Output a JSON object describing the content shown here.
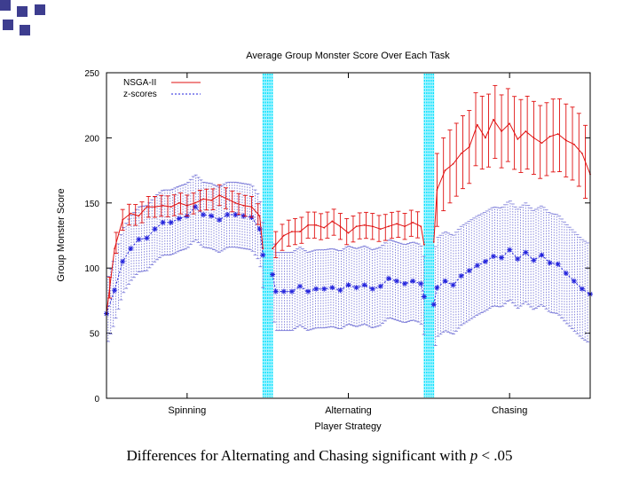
{
  "caption": {
    "prefix": "Differences for Alternating and Chasing significant with ",
    "var": "p",
    "suffix": " < .05"
  },
  "colors": {
    "nsga": "#e01010",
    "zscore": "#2222dd",
    "zscore_err": "#7a7ad8",
    "separator": "#00e0ff",
    "frame": "#000000",
    "deco": "#3d3d8f"
  },
  "chart_data": {
    "type": "line",
    "title": "Average Group Monster Score Over Each Task",
    "xlabel": "Player Strategy",
    "ylabel": "Group Monster Score",
    "ylim": [
      0,
      250
    ],
    "yticks": [
      0,
      50,
      100,
      150,
      200,
      250
    ],
    "xlim": [
      0,
      300
    ],
    "categories": [
      {
        "label": "Spinning",
        "center": 50
      },
      {
        "label": "Alternating",
        "center": 150
      },
      {
        "label": "Chasing",
        "center": 250
      }
    ],
    "separators": [
      100,
      200
    ],
    "legend": {
      "position": "top-left",
      "entries": [
        "NSGA-II",
        "z-scores"
      ]
    },
    "series": [
      {
        "name": "NSGA-II",
        "style": "solid",
        "segments": [
          {
            "x_start": 0,
            "x_end": 97,
            "points": [
              [
                0,
                65
              ],
              [
                5,
                115
              ],
              [
                10,
                137
              ],
              [
                15,
                142
              ],
              [
                20,
                140
              ],
              [
                25,
                147
              ],
              [
                30,
                147
              ],
              [
                35,
                148
              ],
              [
                40,
                147
              ],
              [
                45,
                150
              ],
              [
                50,
                148
              ],
              [
                55,
                150
              ],
              [
                60,
                153
              ],
              [
                65,
                152
              ],
              [
                70,
                156
              ],
              [
                75,
                153
              ],
              [
                80,
                150
              ],
              [
                85,
                148
              ],
              [
                90,
                147
              ],
              [
                95,
                140
              ],
              [
                97,
                115
              ]
            ],
            "err": 8
          },
          {
            "x_start": 103,
            "x_end": 197,
            "points": [
              [
                103,
                115
              ],
              [
                105,
                118
              ],
              [
                110,
                125
              ],
              [
                115,
                128
              ],
              [
                120,
                128
              ],
              [
                125,
                133
              ],
              [
                130,
                133
              ],
              [
                135,
                131
              ],
              [
                140,
                136
              ],
              [
                145,
                132
              ],
              [
                150,
                127
              ],
              [
                155,
                132
              ],
              [
                160,
                133
              ],
              [
                165,
                132
              ],
              [
                170,
                130
              ],
              [
                175,
                132
              ],
              [
                180,
                134
              ],
              [
                185,
                132
              ],
              [
                190,
                135
              ],
              [
                195,
                132
              ],
              [
                197,
                118
              ]
            ],
            "err": 10
          },
          {
            "x_start": 203,
            "x_end": 300,
            "points": [
              [
                203,
                120
              ],
              [
                205,
                160
              ],
              [
                210,
                175
              ],
              [
                215,
                180
              ],
              [
                220,
                188
              ],
              [
                225,
                193
              ],
              [
                230,
                210
              ],
              [
                235,
                200
              ],
              [
                240,
                214
              ],
              [
                245,
                205
              ],
              [
                250,
                211
              ],
              [
                255,
                199
              ],
              [
                260,
                205
              ],
              [
                265,
                200
              ],
              [
                270,
                196
              ],
              [
                275,
                201
              ],
              [
                280,
                203
              ],
              [
                285,
                198
              ],
              [
                290,
                195
              ],
              [
                295,
                188
              ],
              [
                300,
                172
              ]
            ],
            "err": 28
          }
        ]
      },
      {
        "name": "z-scores",
        "style": "dotted",
        "segments": [
          {
            "x_start": 0,
            "x_end": 97,
            "points": [
              [
                0,
                65
              ],
              [
                5,
                83
              ],
              [
                10,
                105
              ],
              [
                15,
                115
              ],
              [
                20,
                122
              ],
              [
                25,
                123
              ],
              [
                30,
                130
              ],
              [
                35,
                135
              ],
              [
                40,
                135
              ],
              [
                45,
                138
              ],
              [
                50,
                140
              ],
              [
                55,
                147
              ],
              [
                60,
                141
              ],
              [
                65,
                140
              ],
              [
                70,
                137
              ],
              [
                75,
                141
              ],
              [
                80,
                141
              ],
              [
                85,
                140
              ],
              [
                90,
                139
              ],
              [
                95,
                130
              ],
              [
                97,
                110
              ]
            ],
            "err": 25
          },
          {
            "x_start": 103,
            "x_end": 197,
            "points": [
              [
                103,
                95
              ],
              [
                105,
                82
              ],
              [
                110,
                82
              ],
              [
                115,
                82
              ],
              [
                120,
                86
              ],
              [
                125,
                82
              ],
              [
                130,
                84
              ],
              [
                135,
                84
              ],
              [
                140,
                85
              ],
              [
                145,
                83
              ],
              [
                150,
                87
              ],
              [
                155,
                85
              ],
              [
                160,
                87
              ],
              [
                165,
                84
              ],
              [
                170,
                86
              ],
              [
                175,
                92
              ],
              [
                180,
                90
              ],
              [
                185,
                88
              ],
              [
                190,
                90
              ],
              [
                195,
                88
              ],
              [
                197,
                78
              ]
            ],
            "err": 30
          },
          {
            "x_start": 203,
            "x_end": 300,
            "points": [
              [
                203,
                72
              ],
              [
                205,
                85
              ],
              [
                210,
                90
              ],
              [
                215,
                87
              ],
              [
                220,
                94
              ],
              [
                225,
                98
              ],
              [
                230,
                102
              ],
              [
                235,
                105
              ],
              [
                240,
                109
              ],
              [
                245,
                108
              ],
              [
                250,
                114
              ],
              [
                255,
                107
              ],
              [
                260,
                112
              ],
              [
                265,
                106
              ],
              [
                270,
                110
              ],
              [
                275,
                104
              ],
              [
                280,
                103
              ],
              [
                285,
                96
              ],
              [
                290,
                90
              ],
              [
                295,
                84
              ],
              [
                300,
                80
              ]
            ],
            "err": 38
          }
        ]
      }
    ]
  }
}
